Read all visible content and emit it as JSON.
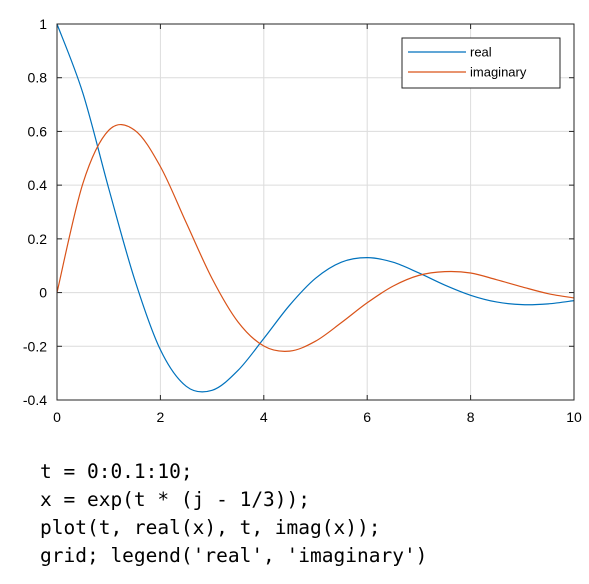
{
  "chart_data": {
    "type": "line",
    "title": "",
    "xlabel": "",
    "ylabel": "",
    "xlim": [
      0,
      10
    ],
    "ylim": [
      -0.4,
      1
    ],
    "grid": true,
    "legend_position": "top-right",
    "x_ticks": [
      "0",
      "2",
      "4",
      "6",
      "8",
      "10"
    ],
    "y_ticks": [
      "-0.4",
      "-0.2",
      "0",
      "0.2",
      "0.4",
      "0.6",
      "0.8",
      "1"
    ],
    "x": [
      0,
      0.5,
      1,
      1.5,
      2,
      2.5,
      3,
      3.5,
      4,
      4.5,
      5,
      5.5,
      6,
      6.5,
      7,
      7.5,
      8,
      8.5,
      9,
      9.5,
      10
    ],
    "series": [
      {
        "name": "real",
        "color": "#0072BD",
        "values": [
          1.0,
          0.743,
          0.388,
          0.05,
          -0.213,
          -0.349,
          -0.364,
          -0.29,
          -0.171,
          -0.047,
          0.053,
          0.113,
          0.13,
          0.113,
          0.073,
          0.028,
          -0.01,
          -0.035,
          -0.045,
          -0.042,
          -0.03
        ]
      },
      {
        "name": "imaginary",
        "color": "#D95319",
        "values": [
          0.0,
          0.406,
          0.604,
          0.605,
          0.469,
          0.26,
          0.052,
          -0.109,
          -0.199,
          -0.218,
          -0.181,
          -0.112,
          -0.038,
          0.024,
          0.064,
          0.078,
          0.073,
          0.048,
          0.021,
          -0.004,
          -0.02
        ]
      }
    ]
  },
  "code": {
    "lines": [
      "t = 0:0.1:10;",
      "x = exp(t * (j - 1/3));",
      "plot(t, real(x), t, imag(x));",
      "grid; legend('real', 'imaginary')"
    ]
  }
}
